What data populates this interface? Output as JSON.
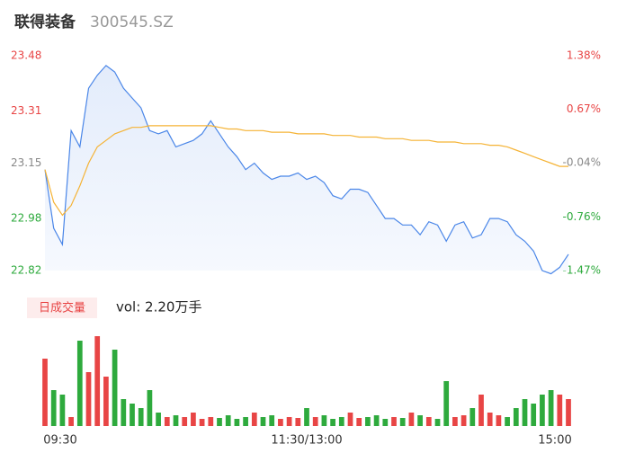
{
  "chart_data": {
    "type": "line",
    "title": "联得装备",
    "subtitle": "300545.SZ",
    "xlim": [
      0,
      240
    ],
    "xticks": [
      {
        "value": 0,
        "label": "09:30"
      },
      {
        "value": 120,
        "label": "11:30/13:00"
      },
      {
        "value": 240,
        "label": "15:00"
      }
    ],
    "x": [
      0,
      4,
      8,
      12,
      16,
      20,
      24,
      28,
      32,
      36,
      40,
      44,
      48,
      52,
      56,
      60,
      64,
      68,
      72,
      76,
      80,
      84,
      88,
      92,
      96,
      100,
      104,
      108,
      112,
      116,
      120,
      124,
      128,
      132,
      136,
      140,
      144,
      148,
      152,
      156,
      160,
      164,
      168,
      172,
      176,
      180,
      184,
      188,
      192,
      196,
      200,
      204,
      208,
      212,
      216,
      220,
      224,
      228,
      232,
      236,
      240
    ],
    "ylim": [
      22.82,
      23.48
    ],
    "yticks": [
      22.82,
      22.98,
      23.15,
      23.31,
      23.48
    ],
    "y2lim": [
      -1.47,
      1.38
    ],
    "y2ticks": [
      {
        "value": -1.47,
        "label": "-1.47%"
      },
      {
        "value": -0.76,
        "label": "-0.76%"
      },
      {
        "value": -0.04,
        "label": "-0.04%"
      },
      {
        "value": 0.67,
        "label": "0.67%"
      },
      {
        "value": 1.38,
        "label": "1.38%"
      }
    ],
    "series": [
      {
        "name": "price",
        "color": "#4a86e8",
        "values": [
          23.13,
          22.95,
          22.9,
          23.25,
          23.2,
          23.38,
          23.42,
          23.45,
          23.43,
          23.38,
          23.35,
          23.32,
          23.25,
          23.24,
          23.25,
          23.2,
          23.21,
          23.22,
          23.24,
          23.28,
          23.24,
          23.2,
          23.17,
          23.13,
          23.15,
          23.12,
          23.1,
          23.11,
          23.11,
          23.12,
          23.1,
          23.11,
          23.09,
          23.05,
          23.04,
          23.07,
          23.07,
          23.06,
          23.02,
          22.98,
          22.98,
          22.96,
          22.96,
          22.93,
          22.97,
          22.96,
          22.91,
          22.96,
          22.97,
          22.92,
          22.93,
          22.98,
          22.98,
          22.97,
          22.93,
          22.91,
          22.88,
          22.82,
          22.81,
          22.83,
          22.87
        ]
      },
      {
        "name": "average",
        "color": "#f5b335",
        "values": [
          23.13,
          23.03,
          22.99,
          23.02,
          23.08,
          23.15,
          23.2,
          23.22,
          23.24,
          23.25,
          23.26,
          23.26,
          23.265,
          23.265,
          23.265,
          23.265,
          23.265,
          23.265,
          23.265,
          23.265,
          23.26,
          23.255,
          23.255,
          23.25,
          23.25,
          23.25,
          23.245,
          23.245,
          23.245,
          23.24,
          23.24,
          23.24,
          23.24,
          23.235,
          23.235,
          23.235,
          23.23,
          23.23,
          23.23,
          23.225,
          23.225,
          23.225,
          23.22,
          23.22,
          23.22,
          23.215,
          23.215,
          23.215,
          23.21,
          23.21,
          23.21,
          23.205,
          23.205,
          23.2,
          23.19,
          23.18,
          23.17,
          23.16,
          23.15,
          23.14,
          23.14
        ]
      }
    ],
    "volume_label": "日成交量",
    "volume_text": "vol: 2.20万手",
    "up_color": "#e84545",
    "down_color": "#2eaa3d",
    "volume_ylim": [
      0,
      100
    ],
    "volume": [
      75,
      40,
      35,
      10,
      95,
      60,
      100,
      55,
      85,
      30,
      25,
      20,
      40,
      15,
      10,
      12,
      10,
      15,
      8,
      10,
      9,
      12,
      8,
      10,
      15,
      10,
      12,
      8,
      10,
      9,
      20,
      10,
      12,
      8,
      10,
      15,
      9,
      10,
      12,
      8,
      10,
      9,
      15,
      12,
      10,
      8,
      50,
      10,
      12,
      20,
      35,
      15,
      12,
      10,
      20,
      30,
      25,
      35,
      40,
      35,
      30
    ]
  }
}
